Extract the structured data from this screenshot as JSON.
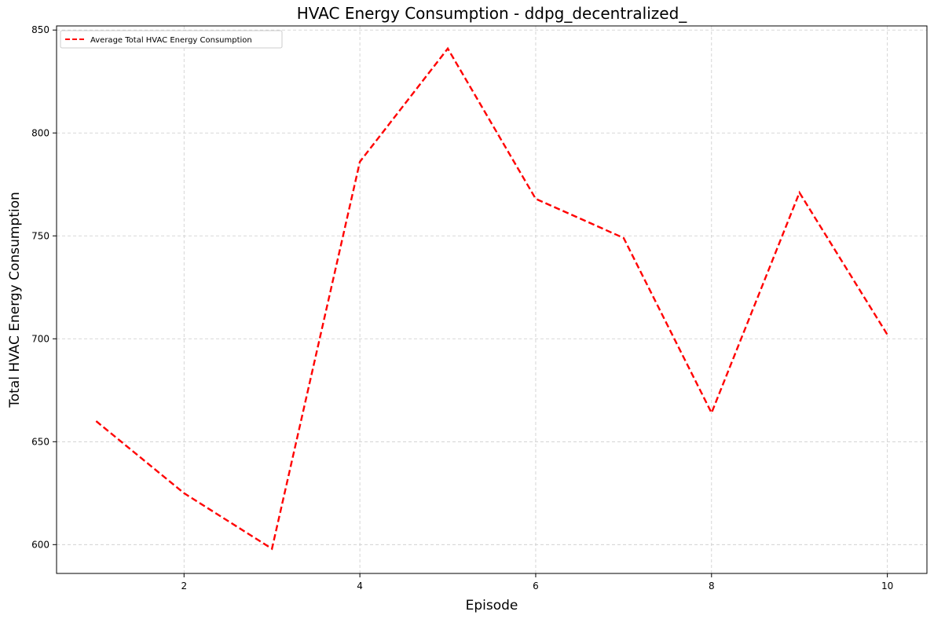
{
  "chart_data": {
    "type": "line",
    "title": "HVAC Energy Consumption - ddpg_decentralized_",
    "xlabel": "Episode",
    "ylabel": "Total HVAC Energy Consumption",
    "x": [
      1,
      2,
      3,
      4,
      5,
      6,
      7,
      8,
      9,
      10
    ],
    "series": [
      {
        "name": "Average Total HVAC Energy Consumption",
        "values": [
          660,
          625,
          598,
          786,
          841,
          768,
          749,
          664,
          771,
          702
        ],
        "color": "#ff0000",
        "line_style": "dashed"
      }
    ],
    "xlim": [
      0.55,
      10.45
    ],
    "ylim": [
      586,
      852
    ],
    "xticks": [
      2,
      4,
      6,
      8,
      10
    ],
    "yticks": [
      600,
      650,
      700,
      750,
      800,
      850
    ],
    "grid": true,
    "legend_position": "top-left"
  }
}
